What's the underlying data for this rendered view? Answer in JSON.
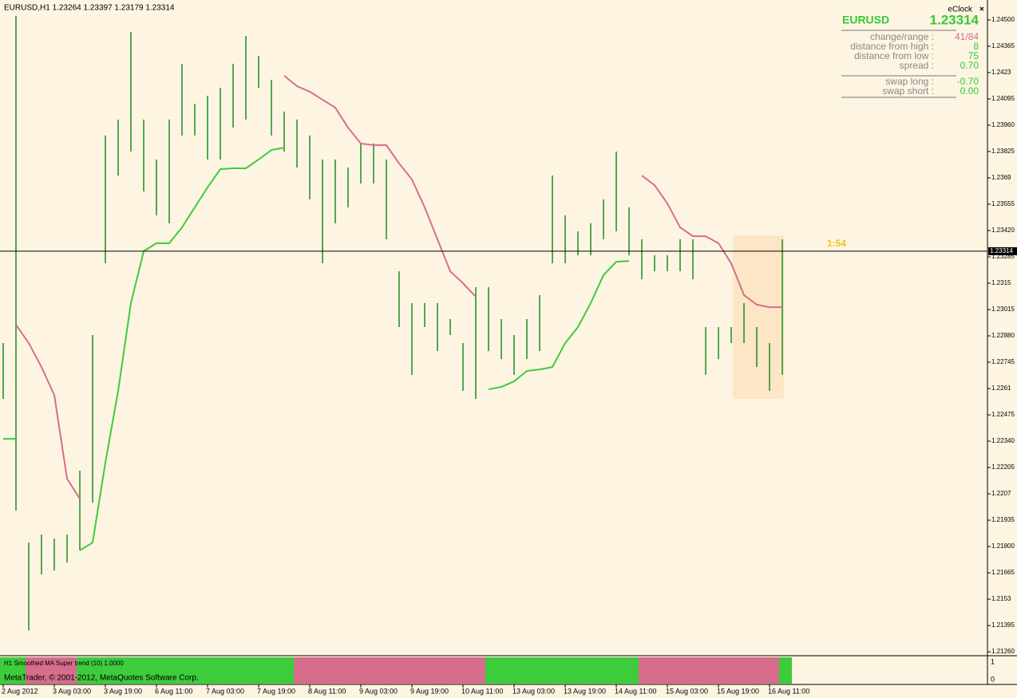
{
  "window": {
    "symbol_info": "EURUSD,H1  1.23264 1.23397 1.23179 1.23314",
    "copyright": "MetaTrader, © 2001-2012, MetaQuotes Software Corp."
  },
  "info_panel": {
    "title": "eClock",
    "close": "×",
    "symbol": "EURUSD",
    "price": "1.23314",
    "rows": [
      {
        "label": "change/range :",
        "value": "41/84"
      },
      {
        "label": "distance from high :",
        "value": "8"
      },
      {
        "label": "distance from low :",
        "value": "75"
      },
      {
        "label": "spread :",
        "value": "0.70"
      }
    ],
    "swap_rows": [
      {
        "label": "swap long :",
        "value": "-0.70"
      },
      {
        "label": "swap short :",
        "value": "0.00"
      }
    ],
    "timer": "1:54"
  },
  "chart_data": {
    "type": "ohlc",
    "color": "#1f8a1f",
    "categories": [
      "2 Aug 2012",
      null,
      null,
      null,
      "3 Aug 03:00",
      null,
      null,
      null,
      "3 Aug 19:00",
      null,
      null,
      null,
      "6 Aug 11:00",
      null,
      null,
      null,
      "7 Aug 03:00",
      null,
      null,
      null,
      "7 Aug 19:00",
      null,
      null,
      null,
      "8 Aug 11:00",
      null,
      null,
      null,
      "9 Aug 03:00",
      null,
      null,
      null,
      "9 Aug 19:00",
      null,
      null,
      null,
      "10 Aug 11:00",
      null,
      null,
      null,
      "13 Aug 03:00",
      null,
      null,
      null,
      "13 Aug 19:00",
      null,
      null,
      null,
      "14 Aug 11:00",
      null,
      null,
      null,
      "15 Aug 03:00",
      null,
      null,
      null,
      "15 Aug 19:00",
      null,
      null,
      null,
      "16 Aug 11:00",
      null
    ],
    "high": [
      1.22843,
      1.2452,
      1.2182,
      1.21861,
      1.21841,
      1.21861,
      1.22189,
      1.22884,
      1.23907,
      1.23989,
      1.24439,
      1.23989,
      1.23784,
      1.23989,
      1.24275,
      1.2407,
      1.24111,
      1.24152,
      1.24275,
      1.24418,
      1.24316,
      1.24193,
      1.2403,
      1.23989,
      1.23907,
      1.23784,
      1.23784,
      1.23743,
      1.23866,
      1.23866,
      1.23784,
      1.23211,
      1.23048,
      1.23048,
      1.23048,
      1.22966,
      1.22843,
      1.2313,
      1.2313,
      1.22966,
      1.22884,
      1.22966,
      1.23089,
      1.23702,
      1.23498,
      1.23416,
      1.23457,
      1.2358,
      1.23825,
      1.23539,
      1.23375,
      1.23293,
      1.23293,
      1.23375,
      1.23375,
      1.22925,
      1.22925,
      1.22925,
      1.23048,
      1.22925,
      1.22843,
      1.23375
    ],
    "low": [
      1.22557,
      1.21984,
      1.2137,
      1.21657,
      1.21677,
      1.21718,
      1.2178,
      1.22025,
      1.23252,
      1.23702,
      1.23825,
      1.2362,
      1.23498,
      1.23457,
      1.23907,
      1.23907,
      1.23784,
      1.23784,
      1.23948,
      1.23989,
      1.24152,
      1.23907,
      1.23825,
      1.23743,
      1.2358,
      1.23252,
      1.23457,
      1.23539,
      1.23661,
      1.23661,
      1.23375,
      1.22925,
      1.2268,
      1.22925,
      1.22802,
      1.22884,
      1.22598,
      1.22557,
      1.22802,
      1.22761,
      1.2268,
      1.22761,
      1.22802,
      1.23252,
      1.23252,
      1.23293,
      1.23293,
      1.23375,
      1.23416,
      1.23293,
      1.2317,
      1.23211,
      1.23211,
      1.23211,
      1.2317,
      1.2268,
      1.22761,
      1.22843,
      1.22843,
      1.2272,
      1.22598,
      1.2268
    ],
    "series": [
      {
        "color": "#3ccc3c",
        "values": [
          1.22352,
          1.22352,
          null,
          null,
          null,
          null,
          1.2178,
          1.2182,
          1.2223,
          1.22598,
          1.23048,
          1.23314,
          1.23355,
          1.23355,
          1.23436,
          1.23539,
          1.23641,
          1.23735,
          1.23739,
          1.23739,
          1.23784,
          1.23833,
          1.23845,
          null,
          null,
          null,
          null,
          null,
          null,
          null,
          null,
          null,
          null,
          null,
          null,
          null,
          null,
          null,
          1.22606,
          1.22618,
          1.22647,
          1.227,
          1.22708,
          1.2272,
          1.22843,
          1.22925,
          1.23048,
          1.23191,
          1.2326,
          1.23264,
          null,
          null,
          null,
          null,
          null,
          null,
          null,
          null,
          null,
          null,
          null,
          1.22622
        ]
      },
      {
        "color": "#d66d8c",
        "values": [
          null,
          1.22937,
          1.22843,
          1.2272,
          1.22577,
          1.22148,
          1.22045,
          null,
          null,
          null,
          null,
          null,
          null,
          null,
          null,
          null,
          null,
          null,
          null,
          null,
          null,
          null,
          1.24214,
          1.2416,
          1.24132,
          1.24091,
          1.2405,
          1.23948,
          1.23866,
          1.23858,
          1.23858,
          1.23764,
          1.23682,
          1.23539,
          1.23375,
          1.23211,
          1.2315,
          1.2308,
          null,
          null,
          null,
          null,
          null,
          null,
          null,
          null,
          null,
          null,
          null,
          null,
          1.23702,
          1.23653,
          1.23559,
          1.23436,
          1.23391,
          1.23391,
          1.23355,
          1.23252,
          1.23089,
          1.2304,
          1.23027,
          1.23027
        ]
      }
    ],
    "current_price": 1.23314,
    "ylim": [
      1.2124,
      1.24602
    ],
    "yticks": [
      {
        "value": 1.245,
        "label": "1.24500"
      },
      1.24365,
      1.2423,
      1.24095,
      {
        "value": 1.2396,
        "label": "1.23960"
      },
      1.23825,
      1.2369,
      1.23555,
      {
        "value": 1.2342,
        "label": "1.23420"
      },
      1.23285,
      1.2315,
      1.23015,
      {
        "value": 1.2288,
        "label": "1.22880"
      },
      1.22745,
      1.2261,
      1.22475,
      {
        "value": 1.2234,
        "label": "1.22340"
      },
      1.22205,
      1.2207,
      1.21935,
      {
        "value": 1.218,
        "label": "1.21800"
      },
      1.21665,
      1.2153,
      1.21395,
      {
        "value": 1.2126,
        "label": "1.21260"
      }
    ],
    "indicator": {
      "label": "H1 Smoothed MA Super trend (10) 1.0000",
      "yticks": [
        1,
        0
      ]
    }
  }
}
